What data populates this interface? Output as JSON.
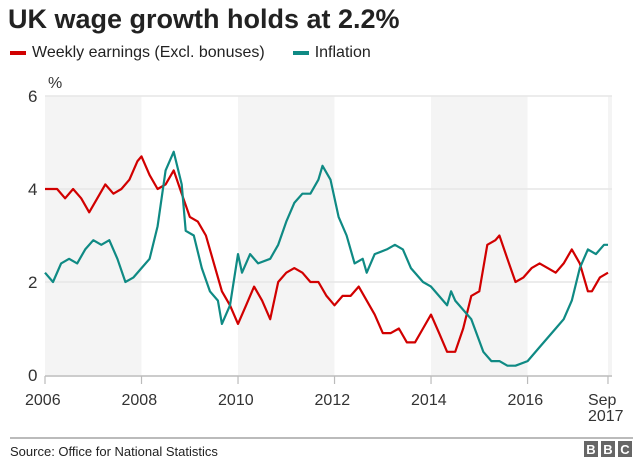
{
  "chart_data": {
    "type": "line",
    "title": "UK wage growth holds at 2.2%",
    "ylabel": "%",
    "ylim": [
      0,
      6
    ],
    "yticks": [
      0,
      2,
      4,
      6
    ],
    "xlim": [
      "2006-01",
      "2017-10"
    ],
    "xticks": [
      {
        "x": "2006-01",
        "label": "2006"
      },
      {
        "x": "2008-01",
        "label": "2008"
      },
      {
        "x": "2010-01",
        "label": "2010"
      },
      {
        "x": "2012-01",
        "label": "2012"
      },
      {
        "x": "2014-01",
        "label": "2014"
      },
      {
        "x": "2016-01",
        "label": "2016"
      },
      {
        "x": "2017-09",
        "label": "Sep",
        "label2": "2017"
      }
    ],
    "grid": true,
    "legend_position": "top-left",
    "series": [
      {
        "name": "Weekly earnings (Excl. bonuses)",
        "color": "#d10000",
        "points": [
          [
            "2006-01",
            4.0
          ],
          [
            "2006-04",
            4.0
          ],
          [
            "2006-06",
            3.8
          ],
          [
            "2006-08",
            4.0
          ],
          [
            "2006-10",
            3.8
          ],
          [
            "2006-12",
            3.5
          ],
          [
            "2007-02",
            3.8
          ],
          [
            "2007-04",
            4.1
          ],
          [
            "2007-06",
            3.9
          ],
          [
            "2007-08",
            4.0
          ],
          [
            "2007-10",
            4.2
          ],
          [
            "2007-12",
            4.6
          ],
          [
            "2008-01",
            4.7
          ],
          [
            "2008-03",
            4.3
          ],
          [
            "2008-05",
            4.0
          ],
          [
            "2008-07",
            4.1
          ],
          [
            "2008-09",
            4.4
          ],
          [
            "2008-11",
            3.9
          ],
          [
            "2009-01",
            3.4
          ],
          [
            "2009-03",
            3.3
          ],
          [
            "2009-05",
            3.0
          ],
          [
            "2009-07",
            2.4
          ],
          [
            "2009-09",
            1.8
          ],
          [
            "2009-11",
            1.5
          ],
          [
            "2010-01",
            1.1
          ],
          [
            "2010-03",
            1.5
          ],
          [
            "2010-05",
            1.9
          ],
          [
            "2010-07",
            1.6
          ],
          [
            "2010-09",
            1.2
          ],
          [
            "2010-11",
            2.0
          ],
          [
            "2011-01",
            2.2
          ],
          [
            "2011-03",
            2.3
          ],
          [
            "2011-05",
            2.2
          ],
          [
            "2011-07",
            2.0
          ],
          [
            "2011-09",
            2.0
          ],
          [
            "2011-11",
            1.7
          ],
          [
            "2012-01",
            1.5
          ],
          [
            "2012-03",
            1.7
          ],
          [
            "2012-05",
            1.7
          ],
          [
            "2012-07",
            1.9
          ],
          [
            "2012-09",
            1.6
          ],
          [
            "2012-11",
            1.3
          ],
          [
            "2013-01",
            0.9
          ],
          [
            "2013-03",
            0.9
          ],
          [
            "2013-05",
            1.0
          ],
          [
            "2013-07",
            0.7
          ],
          [
            "2013-09",
            0.7
          ],
          [
            "2013-11",
            1.0
          ],
          [
            "2014-01",
            1.3
          ],
          [
            "2014-03",
            0.9
          ],
          [
            "2014-05",
            0.5
          ],
          [
            "2014-07",
            0.5
          ],
          [
            "2014-09",
            1.0
          ],
          [
            "2014-11",
            1.7
          ],
          [
            "2015-01",
            1.8
          ],
          [
            "2015-03",
            2.8
          ],
          [
            "2015-05",
            2.9
          ],
          [
            "2015-06",
            3.0
          ],
          [
            "2015-08",
            2.5
          ],
          [
            "2015-10",
            2.0
          ],
          [
            "2015-12",
            2.1
          ],
          [
            "2016-02",
            2.3
          ],
          [
            "2016-04",
            2.4
          ],
          [
            "2016-06",
            2.3
          ],
          [
            "2016-08",
            2.2
          ],
          [
            "2016-10",
            2.4
          ],
          [
            "2016-12",
            2.7
          ],
          [
            "2017-02",
            2.4
          ],
          [
            "2017-04",
            1.8
          ],
          [
            "2017-05",
            1.8
          ],
          [
            "2017-07",
            2.1
          ],
          [
            "2017-09",
            2.2
          ]
        ]
      },
      {
        "name": "Inflation",
        "color": "#0f8a84",
        "points": [
          [
            "2006-01",
            2.2
          ],
          [
            "2006-03",
            2.0
          ],
          [
            "2006-05",
            2.4
          ],
          [
            "2006-07",
            2.5
          ],
          [
            "2006-09",
            2.4
          ],
          [
            "2006-11",
            2.7
          ],
          [
            "2007-01",
            2.9
          ],
          [
            "2007-03",
            2.8
          ],
          [
            "2007-05",
            2.9
          ],
          [
            "2007-07",
            2.5
          ],
          [
            "2007-09",
            2.0
          ],
          [
            "2007-11",
            2.1
          ],
          [
            "2008-01",
            2.3
          ],
          [
            "2008-03",
            2.5
          ],
          [
            "2008-05",
            3.2
          ],
          [
            "2008-07",
            4.4
          ],
          [
            "2008-09",
            4.8
          ],
          [
            "2008-11",
            4.1
          ],
          [
            "2008-12",
            3.1
          ],
          [
            "2009-02",
            3.0
          ],
          [
            "2009-04",
            2.3
          ],
          [
            "2009-06",
            1.8
          ],
          [
            "2009-08",
            1.6
          ],
          [
            "2009-09",
            1.1
          ],
          [
            "2009-11",
            1.5
          ],
          [
            "2010-01",
            2.6
          ],
          [
            "2010-02",
            2.2
          ],
          [
            "2010-04",
            2.6
          ],
          [
            "2010-06",
            2.4
          ],
          [
            "2010-09",
            2.5
          ],
          [
            "2010-11",
            2.8
          ],
          [
            "2011-01",
            3.3
          ],
          [
            "2011-03",
            3.7
          ],
          [
            "2011-05",
            3.9
          ],
          [
            "2011-07",
            3.9
          ],
          [
            "2011-09",
            4.2
          ],
          [
            "2011-10",
            4.5
          ],
          [
            "2011-12",
            4.2
          ],
          [
            "2012-02",
            3.4
          ],
          [
            "2012-04",
            3.0
          ],
          [
            "2012-06",
            2.4
          ],
          [
            "2012-08",
            2.5
          ],
          [
            "2012-09",
            2.2
          ],
          [
            "2012-11",
            2.6
          ],
          [
            "2013-02",
            2.7
          ],
          [
            "2013-04",
            2.8
          ],
          [
            "2013-06",
            2.7
          ],
          [
            "2013-08",
            2.3
          ],
          [
            "2013-11",
            2.0
          ],
          [
            "2014-01",
            1.9
          ],
          [
            "2014-04",
            1.6
          ],
          [
            "2014-05",
            1.5
          ],
          [
            "2014-06",
            1.8
          ],
          [
            "2014-07",
            1.6
          ],
          [
            "2014-11",
            1.2
          ],
          [
            "2015-02",
            0.5
          ],
          [
            "2015-04",
            0.3
          ],
          [
            "2015-06",
            0.3
          ],
          [
            "2015-08",
            0.2
          ],
          [
            "2015-10",
            0.2
          ],
          [
            "2016-01",
            0.3
          ],
          [
            "2016-04",
            0.6
          ],
          [
            "2016-08",
            1.0
          ],
          [
            "2016-10",
            1.2
          ],
          [
            "2016-12",
            1.6
          ],
          [
            "2017-02",
            2.3
          ],
          [
            "2017-04",
            2.7
          ],
          [
            "2017-06",
            2.6
          ],
          [
            "2017-08",
            2.8
          ],
          [
            "2017-09",
            2.8
          ]
        ]
      }
    ]
  },
  "footer": {
    "source": "Source: Office for National Statistics",
    "logo": [
      "B",
      "B",
      "C"
    ]
  },
  "colors": {
    "band": "#f4f4f4",
    "grid": "#e6e6e6",
    "axis": "#bbbbbb"
  }
}
